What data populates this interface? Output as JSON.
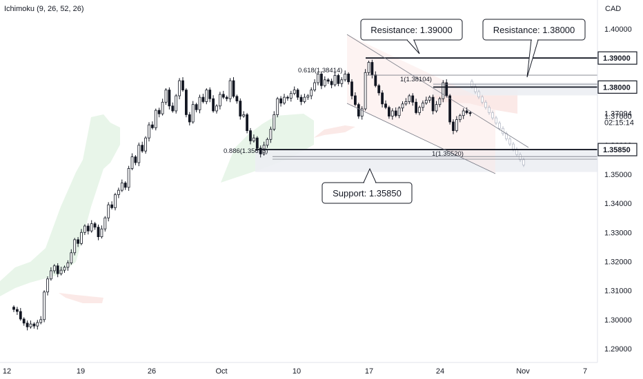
{
  "indicator_label": "Ichimoku (9, 26, 52, 26)",
  "currency": "CAD",
  "chart_data": {
    "type": "candlestick",
    "ylim": [
      1.285,
      1.409
    ],
    "y_ticks": [
      "1.40000",
      "1.39000",
      "1.38000",
      "1.37000",
      "1.36000",
      "1.35000",
      "1.34000",
      "1.33000",
      "1.32000",
      "1.31000",
      "1.30000",
      "1.29000"
    ],
    "y_tick_values": [
      1.4,
      1.39,
      1.38,
      1.37,
      1.36,
      1.35,
      1.34,
      1.33,
      1.32,
      1.31,
      1.3,
      1.29
    ],
    "x_ticks": [
      "12",
      "19",
      "26",
      "Oct",
      "10",
      "17",
      "24",
      "Nov",
      "7"
    ],
    "x_tick_index": [
      0,
      22,
      44,
      66,
      88,
      110,
      132,
      154,
      176
    ],
    "last_price": "1.37094",
    "countdown": "02:15:14",
    "price_tags": [
      {
        "label": "1.39000",
        "value": 1.39
      },
      {
        "label": "1.38000",
        "value": 1.38
      },
      {
        "label": "1.35850",
        "value": 1.3585
      }
    ],
    "callouts": [
      {
        "text": "Resistance: 1.39000",
        "anchor_value": 1.39
      },
      {
        "text": "Resistance: 1.38000",
        "anchor_value": 1.38
      },
      {
        "text": "Support: 1.35850",
        "anchor_value": 1.3585
      }
    ],
    "fib_labels": [
      {
        "text": "0.618(1.38414)",
        "value": 1.38414
      },
      {
        "text": "1(1.38104)",
        "value": 1.38104
      },
      {
        "text": "0.886(1.35613)",
        "value": 1.35613
      },
      {
        "text": "1(1.35520)",
        "value": 1.3552
      }
    ],
    "closes": [
      1.3035,
      1.3028,
      1.3002,
      1.2988,
      1.2975,
      1.2985,
      1.2978,
      1.299,
      1.3,
      1.3095,
      1.314,
      1.3168,
      1.3185,
      1.3158,
      1.317,
      1.318,
      1.3195,
      1.323,
      1.3275,
      1.3262,
      1.33,
      1.3322,
      1.3305,
      1.333,
      1.3318,
      1.3285,
      1.3312,
      1.335,
      1.3395,
      1.3385,
      1.343,
      1.3445,
      1.347,
      1.3455,
      1.352,
      1.356,
      1.354,
      1.36,
      1.358,
      1.3625,
      1.367,
      1.366,
      1.372,
      1.3708,
      1.3748,
      1.379,
      1.3735,
      1.3718,
      1.377,
      1.3822,
      1.379,
      1.3705,
      1.368,
      1.374,
      1.3722,
      1.3765,
      1.375,
      1.379,
      1.376,
      1.3718,
      1.3735,
      1.3775,
      1.3765,
      1.376,
      1.3822,
      1.3768,
      1.3752,
      1.37,
      1.3705,
      1.365,
      1.3615,
      1.3625,
      1.359,
      1.357,
      1.36,
      1.362,
      1.3655,
      1.3705,
      1.376,
      1.3745,
      1.3765,
      1.3762,
      1.3778,
      1.379,
      1.3765,
      1.375,
      1.3765,
      1.377,
      1.379,
      1.3815,
      1.3845,
      1.3805,
      1.3825,
      1.382,
      1.3808,
      1.384,
      1.3812,
      1.3825,
      1.3845,
      1.3818,
      1.377,
      1.374,
      1.37,
      1.3725,
      1.385,
      1.3885,
      1.3842,
      1.3805,
      1.378,
      1.3742,
      1.373,
      1.37,
      1.3718,
      1.3702,
      1.3728,
      1.3742,
      1.375,
      1.377,
      1.3748,
      1.3712,
      1.373,
      1.3745,
      1.3755,
      1.3765,
      1.3718,
      1.374,
      1.376,
      1.3815,
      1.377,
      1.368,
      1.365,
      1.3688,
      1.3702,
      1.3718,
      1.3712,
      1.3709
    ]
  }
}
